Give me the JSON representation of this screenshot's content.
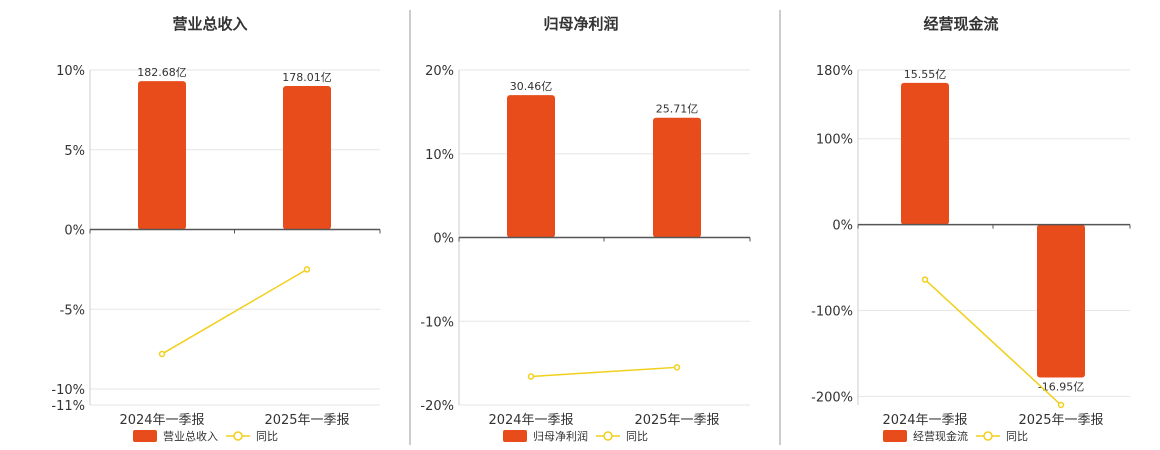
{
  "colors": {
    "bar": "#e84c1b",
    "line": "#f2cf1a",
    "grid": "#e6e6e6",
    "axis": "#555555",
    "divider": "#999999"
  },
  "legend_line_label": "同比",
  "chart_data": [
    {
      "type": "bar",
      "title": "营业总收入",
      "categories": [
        "2024年一季报",
        "2025年一季报"
      ],
      "values": [
        9.3,
        9.0
      ],
      "value_labels": [
        "182.68亿",
        "178.01亿"
      ],
      "line_series": {
        "name": "同比",
        "values": [
          -7.8,
          -2.5
        ]
      },
      "ylim": [
        -11,
        10
      ],
      "ticks": [
        10,
        5,
        0,
        -5,
        -10,
        -11
      ],
      "tick_labels": [
        "10%",
        "5%",
        "0%",
        "-5%",
        "-10%",
        "-11%"
      ],
      "legend": [
        {
          "name": "营业总收入",
          "kind": "bar"
        },
        {
          "name": "同比",
          "kind": "line"
        }
      ],
      "grid": true
    },
    {
      "type": "bar",
      "title": "归母净利润",
      "categories": [
        "2024年一季报",
        "2025年一季报"
      ],
      "values": [
        17.0,
        14.3
      ],
      "value_labels": [
        "30.46亿",
        "25.71亿"
      ],
      "line_series": {
        "name": "同比",
        "values": [
          -16.6,
          -15.5
        ]
      },
      "ylim": [
        -20,
        20
      ],
      "ticks": [
        20,
        10,
        0,
        -10,
        -20
      ],
      "tick_labels": [
        "20%",
        "10%",
        "0%",
        "-10%",
        "-20%"
      ],
      "legend": [
        {
          "name": "归母净利润",
          "kind": "bar"
        },
        {
          "name": "同比",
          "kind": "line"
        }
      ],
      "grid": true
    },
    {
      "type": "bar",
      "title": "经营现金流",
      "categories": [
        "2024年一季报",
        "2025年一季报"
      ],
      "values": [
        165,
        -178
      ],
      "value_labels": [
        "15.55亿",
        "-16.95亿"
      ],
      "line_series": {
        "name": "同比",
        "values": [
          -64,
          -210
        ]
      },
      "ylim": [
        -210,
        180
      ],
      "ticks": [
        180,
        100,
        0,
        -100,
        -200
      ],
      "tick_labels": [
        "180%",
        "100%",
        "0%",
        "-100%",
        "-200%"
      ],
      "legend": [
        {
          "name": "经营现金流",
          "kind": "bar"
        },
        {
          "name": "同比",
          "kind": "line"
        }
      ],
      "grid": true
    }
  ]
}
